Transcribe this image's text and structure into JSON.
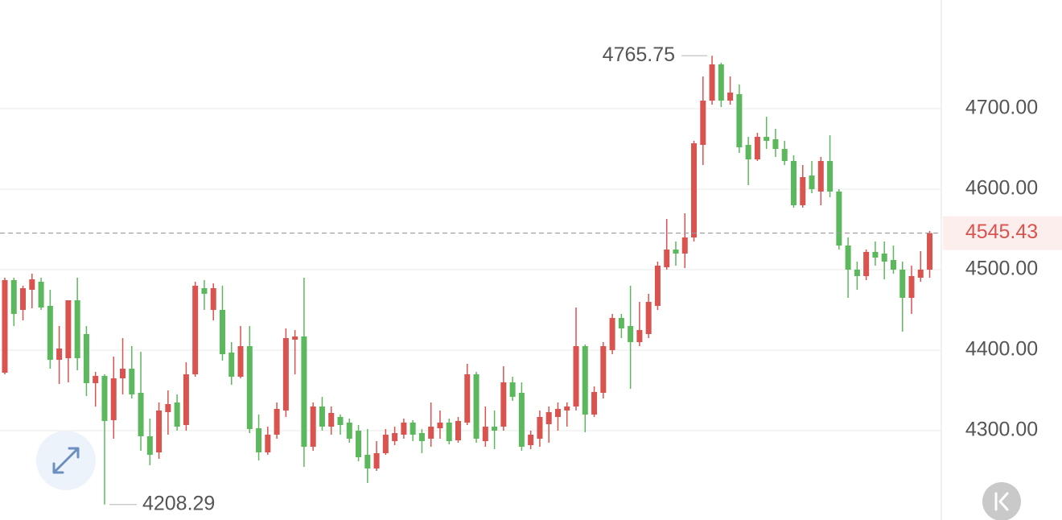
{
  "chart_data": {
    "type": "candlestick",
    "open": [
      4372,
      4487,
      4450,
      4475,
      4485,
      4455,
      4388,
      4390,
      4462,
      4420,
      4359,
      4368,
      4313,
      4365,
      4377,
      4347,
      4293,
      4273,
      4323,
      4335,
      4307,
      4370,
      4477,
      4450,
      4450,
      4397,
      4367,
      4405,
      4303,
      4273,
      4295,
      4325,
      4413,
      4417,
      4280,
      4330,
      4305,
      4317,
      4310,
      4300,
      4270,
      4253,
      4272,
      4287,
      4295,
      4310,
      4297,
      4290,
      4303,
      4310,
      4288,
      4310,
      4370,
      4287,
      4305,
      4305,
      4360,
      4347,
      4282,
      4290,
      4308,
      4317,
      4325,
      4330,
      4405,
      4320,
      4347,
      4400,
      4440,
      4430,
      4410,
      4420,
      4455,
      4503,
      4525,
      4520,
      4540,
      4655,
      4710,
      4755,
      4710,
      4718,
      4655,
      4637,
      4665,
      4662,
      4650,
      4635,
      4580,
      4617,
      4597,
      4635,
      4597,
      4530,
      4500,
      4492,
      4522,
      4520,
      4512,
      4500,
      4465,
      4490,
      4500
    ],
    "high": [
      4490,
      4490,
      4480,
      4495,
      4490,
      4475,
      4430,
      4462,
      4490,
      4430,
      4373,
      4370,
      4392,
      4415,
      4405,
      4398,
      4315,
      4335,
      4350,
      4345,
      4385,
      4485,
      4487,
      4483,
      4480,
      4410,
      4430,
      4430,
      4320,
      4305,
      4335,
      4427,
      4425,
      4490,
      4335,
      4342,
      4330,
      4320,
      4315,
      4307,
      4302,
      4287,
      4302,
      4305,
      4315,
      4313,
      4302,
      4335,
      4325,
      4315,
      4317,
      4383,
      4373,
      4330,
      4325,
      4380,
      4367,
      4360,
      4300,
      4325,
      4330,
      4335,
      4335,
      4453,
      4407,
      4355,
      4410,
      4445,
      4445,
      4480,
      4460,
      4470,
      4510,
      4563,
      4535,
      4570,
      4660,
      4740,
      4765.75,
      4757,
      4740,
      4730,
      4665,
      4670,
      4690,
      4675,
      4660,
      4642,
      4630,
      4635,
      4640,
      4667,
      4600,
      4540,
      4510,
      4525,
      4535,
      4535,
      4530,
      4510,
      4505,
      4523,
      4548
    ],
    "low": [
      4370,
      4430,
      4437,
      4452,
      4450,
      4377,
      4358,
      4360,
      4375,
      4343,
      4330,
      4208.29,
      4290,
      4345,
      4340,
      4275,
      4257,
      4265,
      4295,
      4300,
      4300,
      4367,
      4450,
      4437,
      4387,
      4357,
      4365,
      4297,
      4263,
      4270,
      4290,
      4317,
      4370,
      4255,
      4275,
      4300,
      4295,
      4295,
      4285,
      4262,
      4235,
      4250,
      4270,
      4282,
      4290,
      4287,
      4272,
      4280,
      4290,
      4283,
      4285,
      4307,
      4285,
      4280,
      4277,
      4300,
      4337,
      4275,
      4277,
      4280,
      4285,
      4300,
      4305,
      4325,
      4298,
      4317,
      4340,
      4395,
      4415,
      4352,
      4405,
      4415,
      4450,
      4500,
      4505,
      4502,
      4535,
      4630,
      4705,
      4702,
      4705,
      4645,
      4605,
      4635,
      4650,
      4640,
      4630,
      4577,
      4577,
      4595,
      4580,
      4590,
      4525,
      4465,
      4475,
      4487,
      4505,
      4488,
      4495,
      4423,
      4445,
      4485,
      4490
    ],
    "close": [
      4487,
      4445,
      4477,
      4488,
      4453,
      4388,
      4402,
      4462,
      4390,
      4359,
      4368,
      4312,
      4365,
      4377,
      4345,
      4293,
      4270,
      4325,
      4333,
      4305,
      4370,
      4480,
      4470,
      4477,
      4395,
      4367,
      4405,
      4302,
      4273,
      4295,
      4327,
      4415,
      4417,
      4280,
      4330,
      4305,
      4322,
      4307,
      4290,
      4267,
      4253,
      4272,
      4295,
      4297,
      4310,
      4295,
      4287,
      4305,
      4310,
      4287,
      4312,
      4370,
      4290,
      4305,
      4300,
      4360,
      4342,
      4280,
      4295,
      4317,
      4323,
      4327,
      4330,
      4405,
      4320,
      4348,
      4405,
      4440,
      4427,
      4410,
      4425,
      4460,
      4505,
      4525,
      4520,
      4540,
      4657,
      4710,
      4755,
      4710,
      4720,
      4652,
      4637,
      4665,
      4660,
      4650,
      4635,
      4580,
      4615,
      4600,
      4635,
      4597,
      4530,
      4500,
      4492,
      4522,
      4515,
      4510,
      4500,
      4465,
      4492,
      4500,
      4545.43
    ],
    "up_color": "#d9534f",
    "down_color": "#5cb85c",
    "ylim": [
      4189,
      4835
    ],
    "yticks": [
      {
        "value": 4300,
        "label": "4300.00"
      },
      {
        "value": 4400,
        "label": "4400.00"
      },
      {
        "value": 4500,
        "label": "4500.00"
      },
      {
        "value": 4600,
        "label": "4600.00"
      },
      {
        "value": 4700,
        "label": "4700.00"
      }
    ],
    "grid": true,
    "last_price_line": true
  }
}
